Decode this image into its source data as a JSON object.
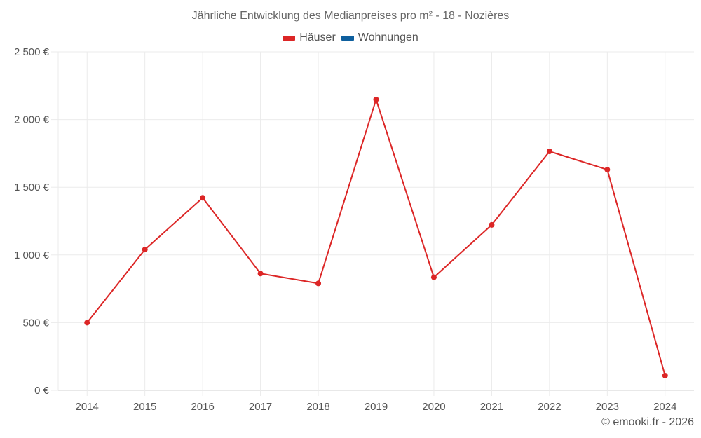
{
  "chart_data": {
    "type": "line",
    "title": "Jährliche Entwicklung des Medianpreises pro m² - 18 - Nozières",
    "xlabel": "",
    "ylabel": "",
    "categories": [
      "2014",
      "2015",
      "2016",
      "2017",
      "2018",
      "2019",
      "2020",
      "2021",
      "2022",
      "2023",
      "2024"
    ],
    "series": [
      {
        "name": "Häuser",
        "color": "#dc2626",
        "values": [
          500,
          1040,
          1422,
          863,
          790,
          2148,
          835,
          1222,
          1765,
          1630,
          109
        ]
      },
      {
        "name": "Wohnungen",
        "color": "#0e5f9e",
        "values": []
      }
    ],
    "ylim": [
      0,
      2500
    ],
    "yticks": [
      0,
      500,
      1000,
      1500,
      2000,
      2500
    ],
    "ytick_labels": [
      "0 €",
      "500 €",
      "1 000 €",
      "1 500 €",
      "2 000 €",
      "2 500 €"
    ],
    "grid": true,
    "legend_position": "top"
  },
  "header": {
    "title": "Jährliche Entwicklung des Medianpreises pro m² - 18 - Nozières"
  },
  "legend": {
    "items": [
      {
        "label": "Häuser",
        "color": "#dc2626"
      },
      {
        "label": "Wohnungen",
        "color": "#0e5f9e"
      }
    ]
  },
  "footer": {
    "credit": "© emooki.fr - 2026"
  }
}
